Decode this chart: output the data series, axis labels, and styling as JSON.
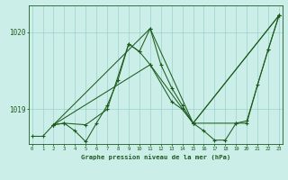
{
  "title": "Graphe pression niveau de la mer (hPa)",
  "bg_color": "#cbeee9",
  "line_color": "#1e5c1e",
  "grid_color": "#8eccc4",
  "x_ticks": [
    0,
    1,
    2,
    3,
    4,
    5,
    6,
    7,
    8,
    9,
    10,
    11,
    12,
    13,
    14,
    15,
    16,
    17,
    18,
    19,
    20,
    21,
    22,
    23
  ],
  "ylim": [
    1018.55,
    1020.35
  ],
  "yticks": [
    1019,
    1020
  ],
  "series1_x": [
    0,
    1,
    2,
    3,
    4,
    5,
    6,
    7,
    8,
    9,
    10,
    11,
    12,
    13,
    14,
    15,
    16,
    17,
    18,
    19,
    20,
    21,
    22,
    23
  ],
  "series1_y": [
    1018.65,
    1018.65,
    1018.8,
    1018.82,
    1018.72,
    1018.58,
    1018.82,
    1019.05,
    1019.38,
    1019.85,
    1019.75,
    1020.05,
    1019.58,
    1019.28,
    1019.05,
    1018.82,
    1018.72,
    1018.6,
    1018.6,
    1018.82,
    1018.82,
    1019.32,
    1019.78,
    1020.22
  ],
  "series2_x": [
    2,
    3,
    5,
    7,
    9,
    10,
    11,
    13,
    14,
    15,
    19,
    20,
    22,
    23
  ],
  "series2_y": [
    1018.8,
    1018.82,
    1018.8,
    1019.0,
    1019.85,
    1019.75,
    1019.58,
    1019.1,
    1019.0,
    1018.82,
    1018.82,
    1018.85,
    1019.78,
    1020.22
  ],
  "series3_x": [
    2,
    11,
    15,
    23
  ],
  "series3_y": [
    1018.8,
    1020.05,
    1018.82,
    1020.22
  ],
  "series4_x": [
    2,
    11,
    15,
    23
  ],
  "series4_y": [
    1018.8,
    1019.58,
    1018.82,
    1020.22
  ]
}
